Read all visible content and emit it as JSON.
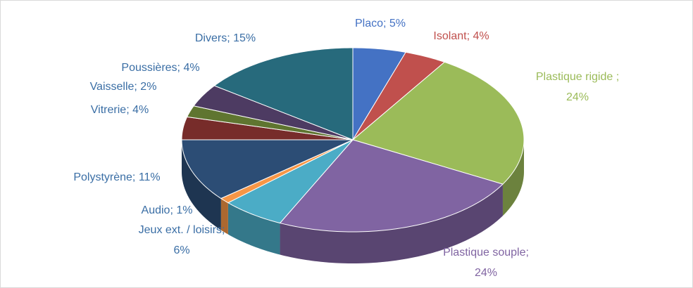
{
  "chart_data": {
    "type": "pie3d",
    "categories": [
      "Placo",
      "Isolant",
      "Plastique rigide",
      "Plastique souple",
      "Jeux ext. / loisirs",
      "Audio",
      "Polystyrène",
      "Vitrerie",
      "Vaisselle",
      "Poussières",
      "Divers"
    ],
    "values": [
      5,
      4,
      24,
      24,
      6,
      1,
      11,
      4,
      2,
      4,
      15
    ],
    "value_labels": [
      [
        "Placo; 5%"
      ],
      [
        "Isolant; 4%"
      ],
      [
        "Plastique rigide ;",
        "24%"
      ],
      [
        "Plastique souple;",
        "24%"
      ],
      [
        "Jeux ext. / loisirs;",
        "6%"
      ],
      [
        "Audio; 1%"
      ],
      [
        "Polystyrène; 11%"
      ],
      [
        "Vitrerie; 4%"
      ],
      [
        "Vaisselle; 2%"
      ],
      [
        "Poussières; 4%"
      ],
      [
        "Divers; 15%"
      ]
    ],
    "colors": [
      "#4472c4",
      "#c0504d",
      "#9bbb59",
      "#8064a2",
      "#4bacc6",
      "#f79646",
      "#2c4d75",
      "#772c2a",
      "#5f7530",
      "#4d3b62",
      "#276a7c"
    ],
    "label_colors": [
      "#4472c4",
      "#c0504d",
      "#9bbb59",
      "#8064a2",
      "#3a6ea5",
      "#3a6ea5",
      "#3a6ea5",
      "#3a6ea5",
      "#3a6ea5",
      "#3a6ea5",
      "#3a6ea5"
    ]
  }
}
